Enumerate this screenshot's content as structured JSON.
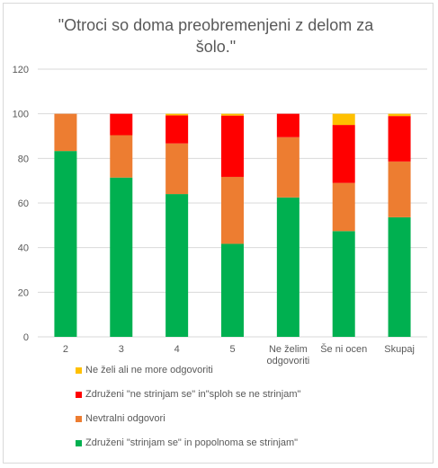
{
  "chart_data": {
    "type": "bar",
    "stacked": true,
    "title": "\"Otroci so doma preobremenjeni  z delom za šolo.\"",
    "title_lines": [
      "\"Otroci so doma preobremenjeni  z delom za",
      "šolo.\""
    ],
    "xlabel": "",
    "ylabel": "",
    "ylim": [
      0,
      120
    ],
    "yticks": [
      "0",
      "20",
      "40",
      "60",
      "80",
      "100",
      "120"
    ],
    "grid": true,
    "legend_position": "bottom",
    "categories": [
      "2",
      "3",
      "4",
      "5",
      "Ne želim odgovoriti",
      "Še ni ocen",
      "Skupaj"
    ],
    "category_lines": [
      [
        "2"
      ],
      [
        "3"
      ],
      [
        "4"
      ],
      [
        "5"
      ],
      [
        "Ne želim",
        "odgovoriti"
      ],
      [
        "Še ni ocen"
      ],
      [
        "Skupaj"
      ]
    ],
    "series": [
      {
        "name": "Združeni  \"strinjam se\" in popolnoma se strinjam\"",
        "color": "#00b050",
        "values": [
          83.3,
          71.4,
          64.0,
          41.7,
          62.5,
          47.4,
          53.6
        ]
      },
      {
        "name": "Nevtralni odgovori",
        "color": "#ed7d31",
        "values": [
          16.7,
          19.0,
          22.7,
          30.0,
          27.0,
          21.6,
          25.0
        ]
      },
      {
        "name": "Združeni  \"ne strinjam se\" in\"sploh se ne strinjam\"",
        "color": "#ff0000",
        "values": [
          0,
          9.6,
          12.6,
          27.5,
          10.5,
          26.0,
          20.4
        ]
      },
      {
        "name": "Ne želi ali ne more odgovoriti",
        "color": "#ffc000",
        "values": [
          0,
          0,
          0.7,
          0.8,
          0,
          5.0,
          1.0
        ]
      }
    ]
  }
}
